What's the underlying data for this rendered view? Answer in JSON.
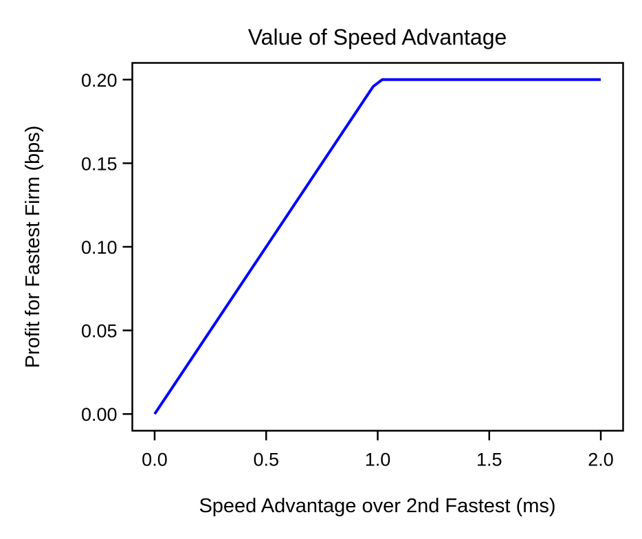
{
  "chart_data": {
    "type": "line",
    "title": "Value of Speed Advantage",
    "xlabel": "Speed Advantage over 2nd Fastest (ms)",
    "ylabel": "Profit for Fastest Firm (bps)",
    "xlim": [
      -0.1,
      2.1
    ],
    "ylim": [
      -0.01,
      0.21
    ],
    "xticks": [
      0.0,
      0.5,
      1.0,
      1.5,
      2.0
    ],
    "xtick_labels": [
      "0.0",
      "0.5",
      "1.0",
      "1.5",
      "2.0"
    ],
    "yticks": [
      0.0,
      0.05,
      0.1,
      0.15,
      0.2
    ],
    "ytick_labels": [
      "0.00",
      "0.05",
      "0.10",
      "0.15",
      "0.20"
    ],
    "grid": false,
    "legend": null,
    "series": [
      {
        "name": "profit",
        "color": "#0000ff",
        "x": [
          0.0,
          0.9796,
          1.0204,
          2.0
        ],
        "y": [
          0.0,
          0.1959,
          0.2,
          0.2
        ]
      }
    ]
  }
}
